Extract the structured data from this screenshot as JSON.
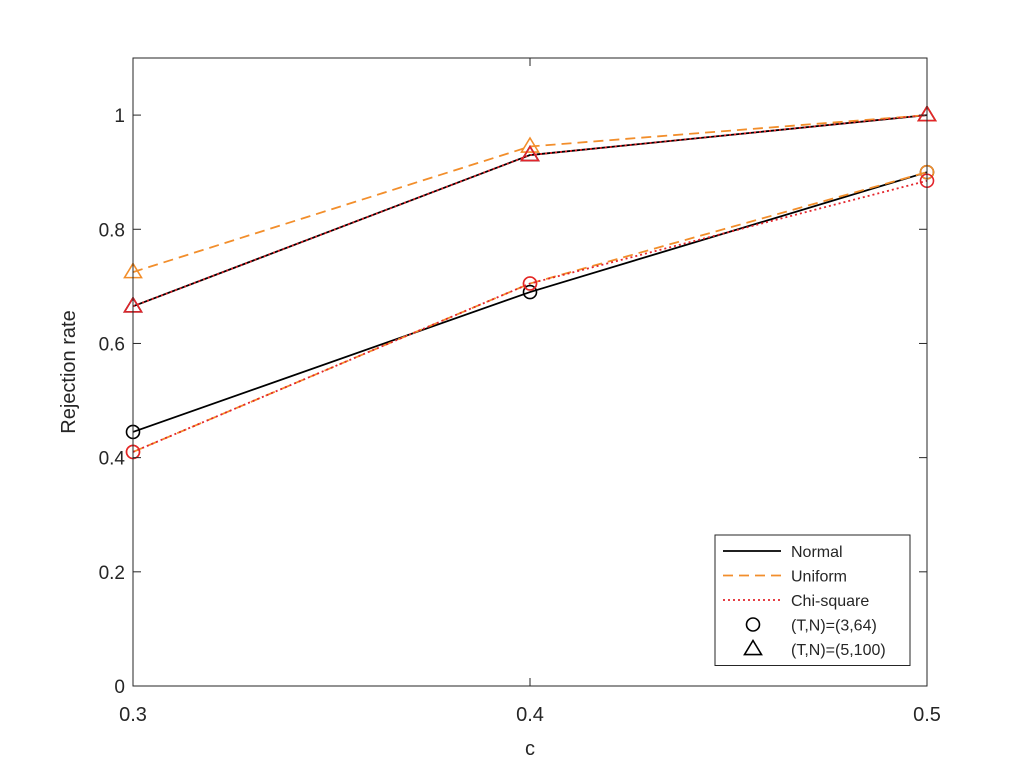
{
  "chart_data": {
    "type": "line",
    "title": "",
    "xlabel": "c",
    "ylabel": "Rejection rate",
    "xlim": [
      0.3,
      0.5
    ],
    "ylim": [
      0,
      1.1
    ],
    "xticks": [
      "0.3",
      "0.4",
      "0.5"
    ],
    "yticks": [
      "0",
      "0.2",
      "0.4",
      "0.6",
      "0.8",
      "1"
    ],
    "grid": false,
    "legend_position": "bottom-right",
    "legend": [
      {
        "label": "Normal",
        "kind": "line",
        "color": "#000000",
        "dash": "solid"
      },
      {
        "label": "Uniform",
        "kind": "line",
        "color": "#F28E2B",
        "dash": "dashed"
      },
      {
        "label": "Chi-square",
        "kind": "line",
        "color": "#E3242B",
        "dash": "dotted"
      },
      {
        "label": "(T,N)=(3,64)",
        "kind": "marker",
        "marker": "circle",
        "color": "#000000"
      },
      {
        "label": "(T,N)=(5,100)",
        "kind": "marker",
        "marker": "triangle",
        "color": "#000000"
      }
    ],
    "x": [
      0.3,
      0.4,
      0.5
    ],
    "series": [
      {
        "distribution": "Normal",
        "group": "(T,N)=(3,64)",
        "marker": "circle",
        "color": "#000000",
        "dash": "solid",
        "values": [
          0.445,
          0.69,
          0.9
        ]
      },
      {
        "distribution": "Uniform",
        "group": "(T,N)=(3,64)",
        "marker": "circle",
        "color": "#F28E2B",
        "dash": "dashed",
        "values": [
          0.41,
          0.705,
          0.9
        ]
      },
      {
        "distribution": "Chi-square",
        "group": "(T,N)=(3,64)",
        "marker": "circle",
        "color": "#E3242B",
        "dash": "dotted",
        "values": [
          0.41,
          0.705,
          0.885
        ]
      },
      {
        "distribution": "Normal",
        "group": "(T,N)=(5,100)",
        "marker": "triangle",
        "color": "#000000",
        "dash": "solid",
        "values": [
          0.665,
          0.93,
          1.0
        ]
      },
      {
        "distribution": "Uniform",
        "group": "(T,N)=(5,100)",
        "marker": "triangle",
        "color": "#F28E2B",
        "dash": "dashed",
        "values": [
          0.725,
          0.945,
          1.0
        ]
      },
      {
        "distribution": "Chi-square",
        "group": "(T,N)=(5,100)",
        "marker": "triangle",
        "color": "#E3242B",
        "dash": "dotted",
        "values": [
          0.665,
          0.93,
          1.0
        ]
      }
    ]
  }
}
